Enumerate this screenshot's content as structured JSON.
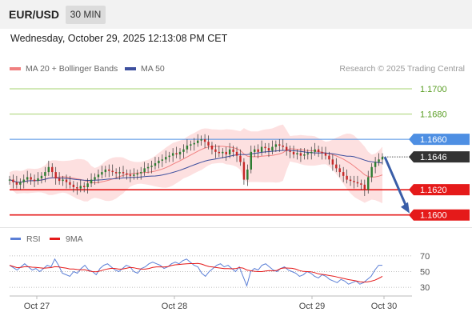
{
  "header": {
    "symbol": "EUR/USD",
    "timeframe": "30 MIN",
    "datetime": "Wednesday, October 29, 2025 12:13:08 PM CET"
  },
  "legend": {
    "ma20": "MA 20 + Bollinger Bands",
    "ma50": "MA 50",
    "credit": "Research © 2025 Trading Central"
  },
  "colors": {
    "ma20": "#f08080",
    "ma50": "#3d4f9e",
    "bands": "#fde0e0",
    "resistance_green": "#a6d36f",
    "pivot_blue": "#4e8fe3",
    "support_red": "#e51a1a",
    "rsi": "#5b7fd6",
    "rsi_ma": "#e51a1a",
    "arrow": "#3a5ea8"
  },
  "chart_data": {
    "type": "line",
    "title": "EUR/USD",
    "timeframe": "30 MIN",
    "x_labels": [
      "Oct 27",
      "Oct 28",
      "Oct 29",
      "Oct 30"
    ],
    "ylim": [
      1.1596,
      1.1707
    ],
    "price_series": [
      1.1628,
      1.1626,
      1.1624,
      1.1626,
      1.1628,
      1.163,
      1.1628,
      1.1627,
      1.1629,
      1.1631,
      1.1634,
      1.1638,
      1.1634,
      1.1629,
      1.1627,
      1.1628,
      1.1626,
      1.1624,
      1.1622,
      1.1621,
      1.1623,
      1.1622,
      1.1625,
      1.1628,
      1.163,
      1.1632,
      1.1634,
      1.1636,
      1.1635,
      1.1634,
      1.1633,
      1.1634,
      1.1633,
      1.1632,
      1.1631,
      1.1632,
      1.1633,
      1.1634,
      1.1637,
      1.1638,
      1.1639,
      1.1641,
      1.1643,
      1.1644,
      1.1646,
      1.1647,
      1.1649,
      1.1648,
      1.165,
      1.1652,
      1.1655,
      1.1656,
      1.1657,
      1.1659,
      1.166,
      1.1658,
      1.1655,
      1.1652,
      1.165,
      1.1649,
      1.165,
      1.1648,
      1.1652,
      1.165,
      1.1647,
      1.1642,
      1.1628,
      1.1636,
      1.165,
      1.1652,
      1.165,
      1.1654,
      1.1653,
      1.1651,
      1.1654,
      1.1656,
      1.1655,
      1.1654,
      1.1651,
      1.165,
      1.1648,
      1.1649,
      1.1647,
      1.1648,
      1.1649,
      1.165,
      1.1652,
      1.165,
      1.1649,
      1.1647,
      1.1644,
      1.164,
      1.1637,
      1.1634,
      1.1631,
      1.1628,
      1.1627,
      1.1626,
      1.1625,
      1.1624,
      1.162,
      1.163,
      1.1638,
      1.1642,
      1.1644,
      1.1646
    ],
    "current_price": 1.1646,
    "levels": [
      {
        "value": 1.17,
        "label": "1.1700",
        "kind": "resistance"
      },
      {
        "value": 1.168,
        "label": "1.1680",
        "kind": "resistance"
      },
      {
        "value": 1.166,
        "label": "1.1660",
        "kind": "pivot"
      },
      {
        "value": 1.162,
        "label": "1.1620",
        "kind": "support"
      },
      {
        "value": 1.16,
        "label": "1.1600",
        "kind": "support"
      }
    ],
    "forecast_arrow": {
      "from": 1.1646,
      "to": 1.16
    },
    "rsi": {
      "legend": [
        "RSI",
        "9MA"
      ],
      "levels": [
        70,
        50,
        30
      ],
      "ylim": [
        22,
        78
      ],
      "values": [
        58,
        55,
        52,
        56,
        60,
        56,
        52,
        54,
        50,
        54,
        58,
        56,
        66,
        58,
        48,
        46,
        44,
        50,
        48,
        54,
        58,
        52,
        50,
        46,
        54,
        58,
        60,
        56,
        52,
        50,
        54,
        58,
        56,
        50,
        48,
        54,
        56,
        60,
        62,
        60,
        58,
        54,
        56,
        60,
        62,
        60,
        64,
        66,
        62,
        58,
        56,
        48,
        44,
        50,
        54,
        58,
        60,
        56,
        58,
        54,
        50,
        56,
        44,
        32,
        50,
        54,
        52,
        58,
        60,
        56,
        52,
        50,
        54,
        56,
        52,
        50,
        48,
        44,
        46,
        50,
        48,
        44,
        42,
        46,
        44,
        40,
        38,
        36,
        40,
        38,
        34,
        36,
        38,
        34,
        36,
        40,
        44,
        52,
        58,
        58
      ]
    }
  }
}
